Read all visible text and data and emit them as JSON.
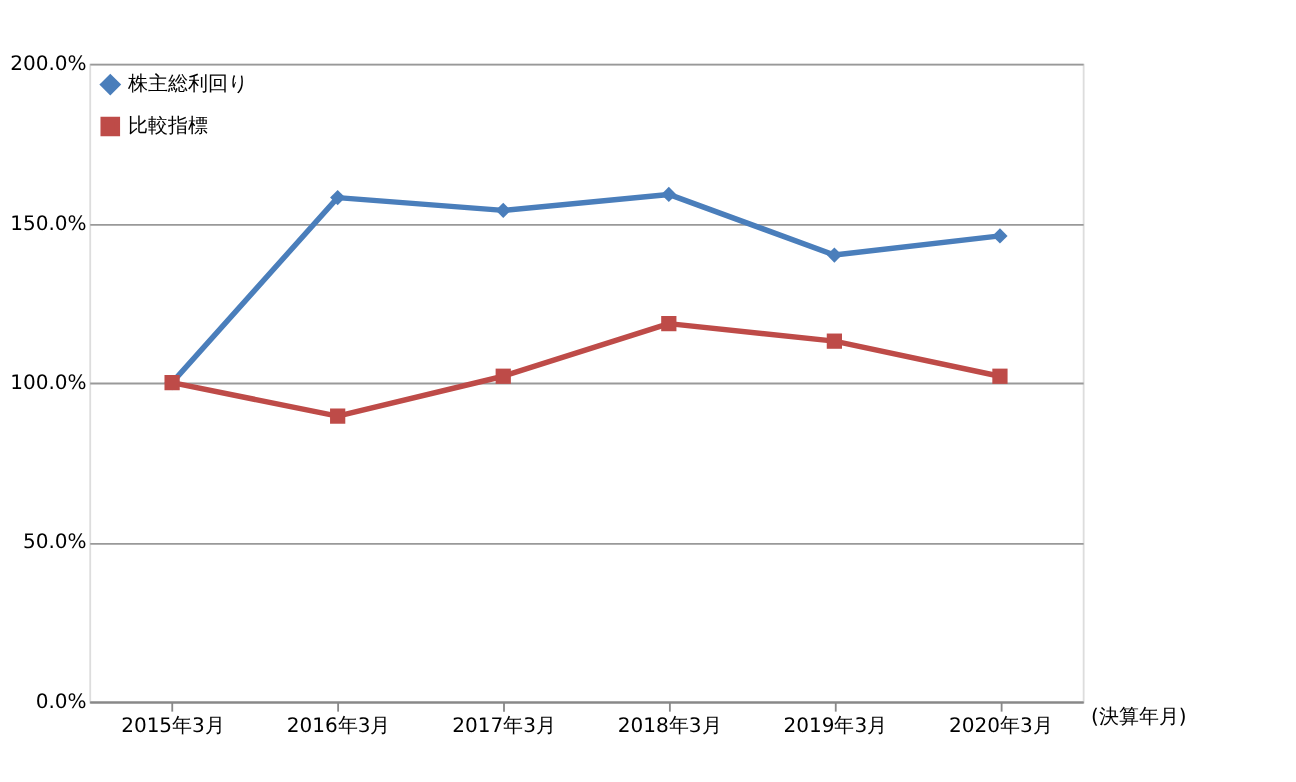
{
  "chart_data": {
    "type": "line",
    "xlabel": "(決算年月)",
    "categories": [
      "2015年3月",
      "2016年3月",
      "2017年3月",
      "2018年3月",
      "2019年3月",
      "2020年3月"
    ],
    "series": [
      {
        "name": "株主総利回り",
        "color": "#4a7ebb",
        "marker": "diamond",
        "values": [
          100,
          158,
          154,
          159,
          140,
          146
        ]
      },
      {
        "name": "比較指標",
        "color": "#be4b48",
        "marker": "square",
        "values": [
          100,
          89.5,
          102,
          118.5,
          113,
          102
        ]
      }
    ],
    "ylim": [
      0,
      200
    ],
    "yticks": [
      {
        "value": 0,
        "label": "0.0%"
      },
      {
        "value": 50,
        "label": "50.0%"
      },
      {
        "value": 100,
        "label": "100.0%"
      },
      {
        "value": 150,
        "label": "150.0%"
      },
      {
        "value": 200,
        "label": "200.0%"
      }
    ],
    "grid": "y",
    "legend": "top left",
    "line_style": "solid"
  }
}
